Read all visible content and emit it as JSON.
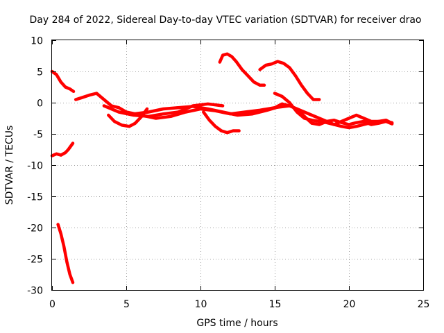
{
  "chart_data": {
    "type": "line",
    "title": "Day 284 of 2022, Sidereal Day-to-day VTEC variation (SDTVAR) for receiver drao",
    "xlabel": "GPS time / hours",
    "ylabel": "SDTVAR / TECUs",
    "xlim": [
      0,
      25
    ],
    "ylim": [
      -30,
      10
    ],
    "xticks": [
      "0",
      "5",
      "10",
      "15",
      "20",
      "25"
    ],
    "yticks": [
      "10",
      "5",
      "0",
      "-5",
      "-10",
      "-15",
      "-20",
      "-25",
      "-30"
    ],
    "grid": true,
    "color": "#ff0000",
    "series": [
      {
        "name": "trace-1",
        "x": [
          0.0,
          0.3,
          0.6,
          0.9,
          1.2,
          1.45
        ],
        "y": [
          5.0,
          4.5,
          3.3,
          2.5,
          2.2,
          1.8
        ]
      },
      {
        "name": "trace-2",
        "x": [
          0.0,
          0.3,
          0.6,
          0.9,
          1.1,
          1.4
        ],
        "y": [
          -8.5,
          -8.2,
          -8.4,
          -8.0,
          -7.5,
          -6.5
        ]
      },
      {
        "name": "trace-3",
        "x": [
          0.4,
          0.6,
          0.8,
          1.0,
          1.2,
          1.4
        ],
        "y": [
          -19.5,
          -21.0,
          -23.0,
          -25.5,
          -27.5,
          -28.8
        ]
      },
      {
        "name": "trace-4",
        "x": [
          1.6,
          2.0,
          2.5,
          3.0,
          3.5,
          4.0,
          4.5,
          5.0,
          6.0,
          7.0,
          8.0,
          9.0,
          10.0,
          11.0,
          12.0,
          13.0,
          14.0,
          15.0,
          16.0
        ],
        "y": [
          0.5,
          0.8,
          1.2,
          1.5,
          0.5,
          -0.5,
          -0.8,
          -1.5,
          -2.0,
          -2.5,
          -2.2,
          -1.5,
          -1.0,
          -1.3,
          -1.8,
          -1.5,
          -1.2,
          -0.8,
          -0.5
        ]
      },
      {
        "name": "trace-5",
        "x": [
          3.5,
          4.5,
          5.5,
          6.5,
          7.5,
          8.5,
          9.5,
          10.5,
          11.5
        ],
        "y": [
          -0.5,
          -1.5,
          -2.0,
          -2.2,
          -1.8,
          -1.5,
          -0.5,
          -0.2,
          -0.5
        ]
      },
      {
        "name": "trace-6",
        "x": [
          3.8,
          4.2,
          4.7,
          5.2,
          5.6,
          6.0,
          6.4
        ],
        "y": [
          -2.0,
          -3.0,
          -3.6,
          -3.8,
          -3.3,
          -2.3,
          -1.0
        ]
      },
      {
        "name": "trace-7",
        "x": [
          5.5,
          6.5,
          7.5,
          8.5,
          9.5,
          10.5,
          11.5,
          12.5,
          13.5,
          14.5,
          15.5
        ],
        "y": [
          -1.8,
          -1.5,
          -1.0,
          -0.8,
          -0.6,
          -1.0,
          -1.5,
          -2.0,
          -1.8,
          -1.2,
          -0.5
        ]
      },
      {
        "name": "trace-8",
        "x": [
          10.2,
          10.6,
          11.0,
          11.4,
          11.8,
          12.2,
          12.6
        ],
        "y": [
          -1.5,
          -2.8,
          -3.8,
          -4.5,
          -4.8,
          -4.5,
          -4.5
        ]
      },
      {
        "name": "trace-9",
        "x": [
          11.3,
          11.5,
          11.8,
          12.1,
          12.4,
          12.8,
          13.2,
          13.6,
          14.0,
          14.3
        ],
        "y": [
          6.5,
          7.6,
          7.8,
          7.4,
          6.6,
          5.3,
          4.3,
          3.3,
          2.8,
          2.8
        ]
      },
      {
        "name": "trace-10",
        "x": [
          14.0,
          14.4,
          14.8,
          15.2,
          15.6,
          16.0,
          16.4,
          16.8,
          17.2,
          17.6,
          18.0
        ],
        "y": [
          5.3,
          6.0,
          6.2,
          6.6,
          6.3,
          5.6,
          4.3,
          2.8,
          1.5,
          0.5,
          0.5
        ]
      },
      {
        "name": "trace-11",
        "x": [
          15.0,
          15.5,
          16.0,
          16.5,
          17.0,
          17.5,
          18.0,
          18.5,
          19.0,
          19.5,
          20.0,
          20.5,
          21.0,
          21.5,
          22.0,
          22.5,
          22.9
        ],
        "y": [
          1.5,
          1.0,
          0.0,
          -1.5,
          -2.5,
          -2.8,
          -3.0,
          -3.2,
          -3.5,
          -3.8,
          -4.0,
          -3.8,
          -3.5,
          -3.2,
          -3.0,
          -2.8,
          -3.3
        ]
      },
      {
        "name": "trace-12",
        "x": [
          15.0,
          15.5,
          16.0,
          16.5,
          17.0,
          17.5,
          18.0,
          18.5,
          19.0,
          19.5,
          20.0,
          20.5,
          21.0,
          21.5,
          22.0,
          22.5,
          22.9
        ],
        "y": [
          -0.8,
          -0.2,
          -0.5,
          -1.0,
          -1.5,
          -2.0,
          -2.5,
          -3.0,
          -3.5,
          -3.0,
          -2.5,
          -2.0,
          -2.5,
          -3.0,
          -3.0,
          -3.0,
          -3.2
        ]
      },
      {
        "name": "trace-13",
        "x": [
          16.5,
          17.0,
          17.5,
          18.0,
          18.5,
          19.0,
          19.5,
          20.0,
          20.5,
          21.0,
          21.5,
          22.0,
          22.5,
          22.9
        ],
        "y": [
          -1.0,
          -2.2,
          -3.3,
          -3.5,
          -3.0,
          -2.8,
          -3.2,
          -3.5,
          -3.2,
          -3.0,
          -3.5,
          -3.3,
          -3.0,
          -3.4
        ]
      }
    ]
  }
}
